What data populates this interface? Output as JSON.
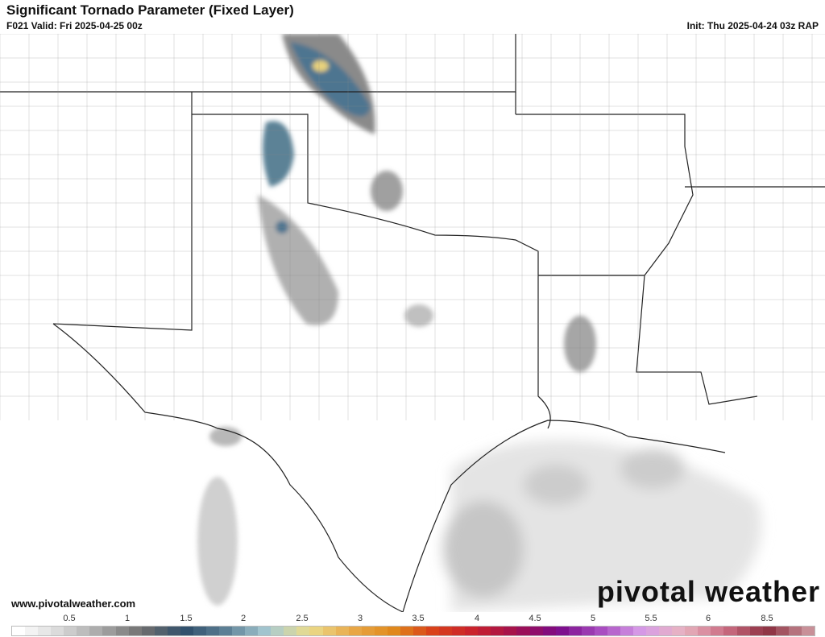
{
  "header": {
    "title": "Significant Tornado Parameter (Fixed Layer)",
    "valid": "F021 Valid: Fri 2025-04-25 00z",
    "init": "Init: Thu 2025-04-24 03z RAP"
  },
  "footer": {
    "website": "www.pivotalweather.com",
    "logo_text": "pivotal weather"
  },
  "colorbar": {
    "ticks": [
      "0.5",
      "1",
      "1.5",
      "2",
      "2.5",
      "3",
      "3.5",
      "4",
      "4.5",
      "5",
      "5.5",
      "6",
      "8.5"
    ],
    "stops": [
      "#ffffff",
      "#d9d9d9",
      "#a6a6a6",
      "#6e6e6e",
      "#2f4f6b",
      "#5d8096",
      "#a7cad3",
      "#eadc8c",
      "#e9a94a",
      "#e08a1c",
      "#d9401a",
      "#c8202e",
      "#a01050",
      "#7a0a8a",
      "#a84cc0",
      "#d79ce8",
      "#e8b4c0",
      "#cc6e84",
      "#8c3040",
      "#c89098"
    ]
  }
}
